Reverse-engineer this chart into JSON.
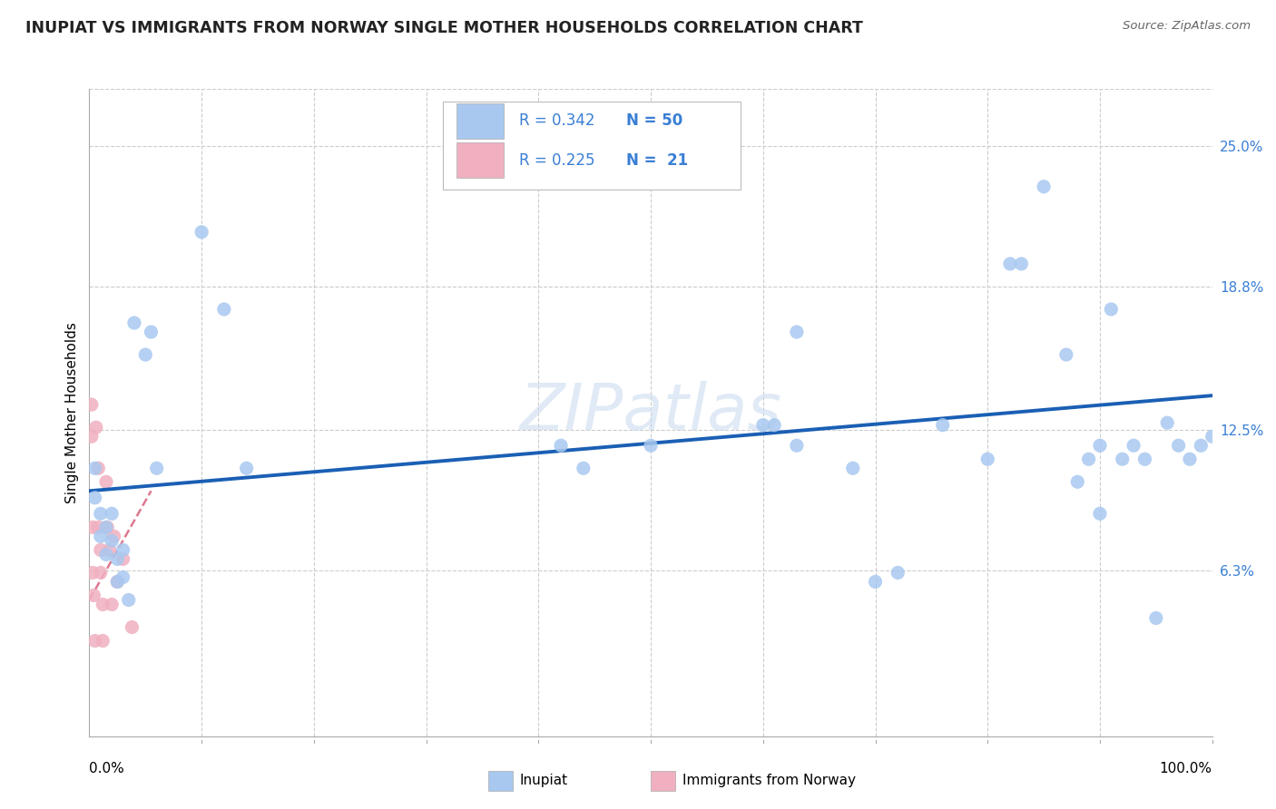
{
  "title": "INUPIAT VS IMMIGRANTS FROM NORWAY SINGLE MOTHER HOUSEHOLDS CORRELATION CHART",
  "source": "Source: ZipAtlas.com",
  "ylabel": "Single Mother Households",
  "ytick_labels": [
    "6.3%",
    "12.5%",
    "18.8%",
    "25.0%"
  ],
  "ytick_values": [
    0.063,
    0.125,
    0.188,
    0.25
  ],
  "xlim": [
    0.0,
    1.0
  ],
  "ylim": [
    -0.01,
    0.275
  ],
  "inupiat_x": [
    0.005,
    0.005,
    0.01,
    0.01,
    0.015,
    0.015,
    0.02,
    0.02,
    0.025,
    0.025,
    0.03,
    0.03,
    0.035,
    0.04,
    0.05,
    0.055,
    0.06,
    0.1,
    0.12,
    0.14,
    0.42,
    0.44,
    0.5,
    0.6,
    0.61,
    0.63,
    0.63,
    0.68,
    0.7,
    0.72,
    0.76,
    0.8,
    0.82,
    0.83,
    0.85,
    0.87,
    0.88,
    0.89,
    0.9,
    0.9,
    0.91,
    0.92,
    0.93,
    0.94,
    0.95,
    0.96,
    0.97,
    0.98,
    0.99,
    1.0
  ],
  "inupiat_y": [
    0.108,
    0.095,
    0.088,
    0.078,
    0.082,
    0.07,
    0.088,
    0.076,
    0.068,
    0.058,
    0.072,
    0.06,
    0.05,
    0.172,
    0.158,
    0.168,
    0.108,
    0.212,
    0.178,
    0.108,
    0.118,
    0.108,
    0.118,
    0.127,
    0.127,
    0.168,
    0.118,
    0.108,
    0.058,
    0.062,
    0.127,
    0.112,
    0.198,
    0.198,
    0.232,
    0.158,
    0.102,
    0.112,
    0.118,
    0.088,
    0.178,
    0.112,
    0.118,
    0.112,
    0.042,
    0.128,
    0.118,
    0.112,
    0.118,
    0.122
  ],
  "norway_x": [
    0.002,
    0.002,
    0.003,
    0.003,
    0.004,
    0.005,
    0.006,
    0.008,
    0.008,
    0.01,
    0.01,
    0.012,
    0.012,
    0.015,
    0.016,
    0.018,
    0.02,
    0.022,
    0.025,
    0.03,
    0.038
  ],
  "norway_y": [
    0.136,
    0.122,
    0.082,
    0.062,
    0.052,
    0.032,
    0.126,
    0.108,
    0.082,
    0.072,
    0.062,
    0.048,
    0.032,
    0.102,
    0.082,
    0.072,
    0.048,
    0.078,
    0.058,
    0.068,
    0.038
  ],
  "inupiat_trend_x": [
    0.0,
    1.0
  ],
  "inupiat_trend_y": [
    0.098,
    0.14
  ],
  "norway_trend_x": [
    0.0,
    0.055
  ],
  "norway_trend_y": [
    0.05,
    0.098
  ],
  "inupiat_color": "#a8c8f0",
  "norway_color": "#f0b0c0",
  "inupiat_trend_color": "#1a5fb4",
  "norway_trend_color": "#d04060",
  "scatter_size": 120,
  "background_color": "#ffffff",
  "grid_color": "#cccccc",
  "ytick_color": "#3a7fd5",
  "legend_r1": "R = 0.342",
  "legend_n1": "N = 50",
  "legend_r2": "R = 0.225",
  "legend_n2": "N =  21",
  "bottom_label1": "Inupiat",
  "bottom_label2": "Immigrants from Norway",
  "watermark": "ZIPatlas"
}
